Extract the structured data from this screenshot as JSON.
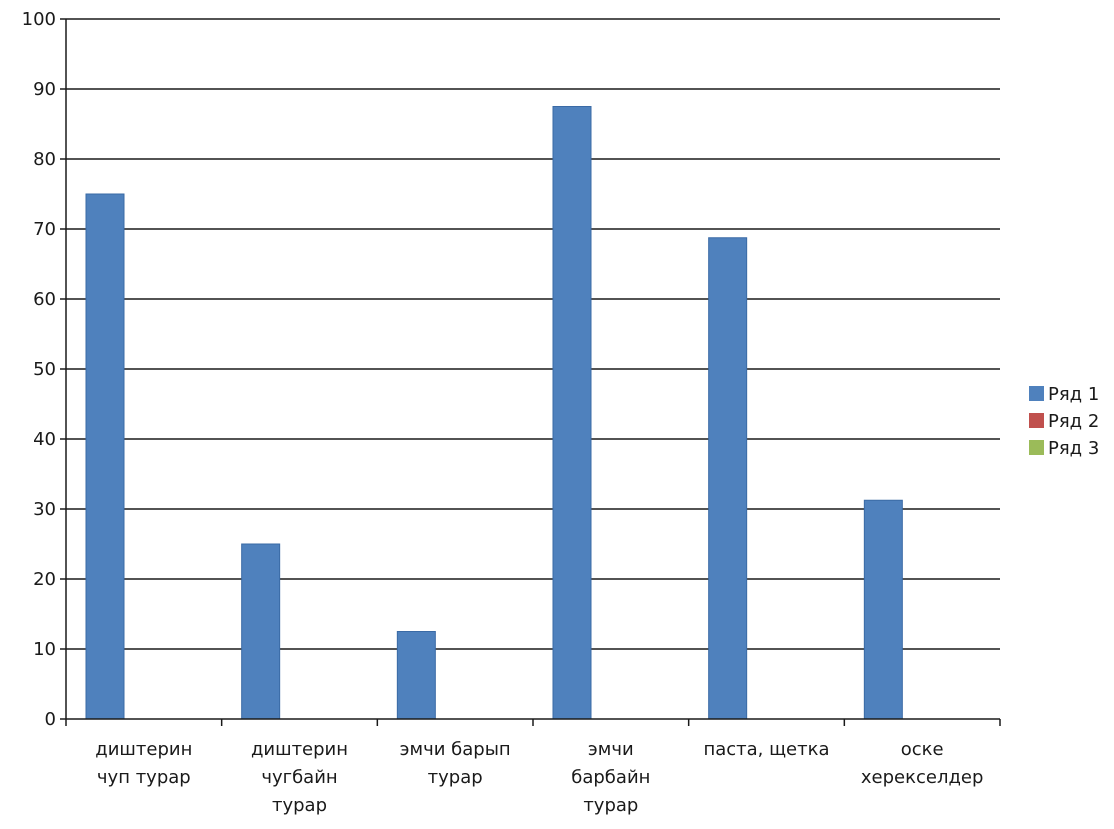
{
  "chart_data": {
    "type": "bar",
    "title": "",
    "xlabel": "",
    "ylabel": "",
    "ylim": [
      0,
      100
    ],
    "yticks": [
      0,
      10,
      20,
      30,
      40,
      50,
      60,
      70,
      80,
      90,
      100
    ],
    "categories": [
      [
        "диштерин",
        "чуп турар"
      ],
      [
        "диштерин",
        "чугбайн",
        "турар"
      ],
      [
        "эмчи барып",
        "турар"
      ],
      [
        "эмчи",
        "барбайн",
        "турар"
      ],
      [
        "паста, щетка"
      ],
      [
        "оске",
        "херекселдер"
      ]
    ],
    "series": [
      {
        "name": "Ряд 1",
        "color": "#4f81bd",
        "values": [
          75,
          25,
          12.5,
          87.5,
          68.75,
          31.25
        ]
      },
      {
        "name": "Ряд 2",
        "color": "#c0504d",
        "values": [
          0,
          0,
          0,
          0,
          0,
          0
        ]
      },
      {
        "name": "Ряд 3",
        "color": "#9bbb59",
        "values": [
          0,
          0,
          0,
          0,
          0,
          0
        ]
      }
    ],
    "grid": true,
    "legend_position": "right"
  }
}
